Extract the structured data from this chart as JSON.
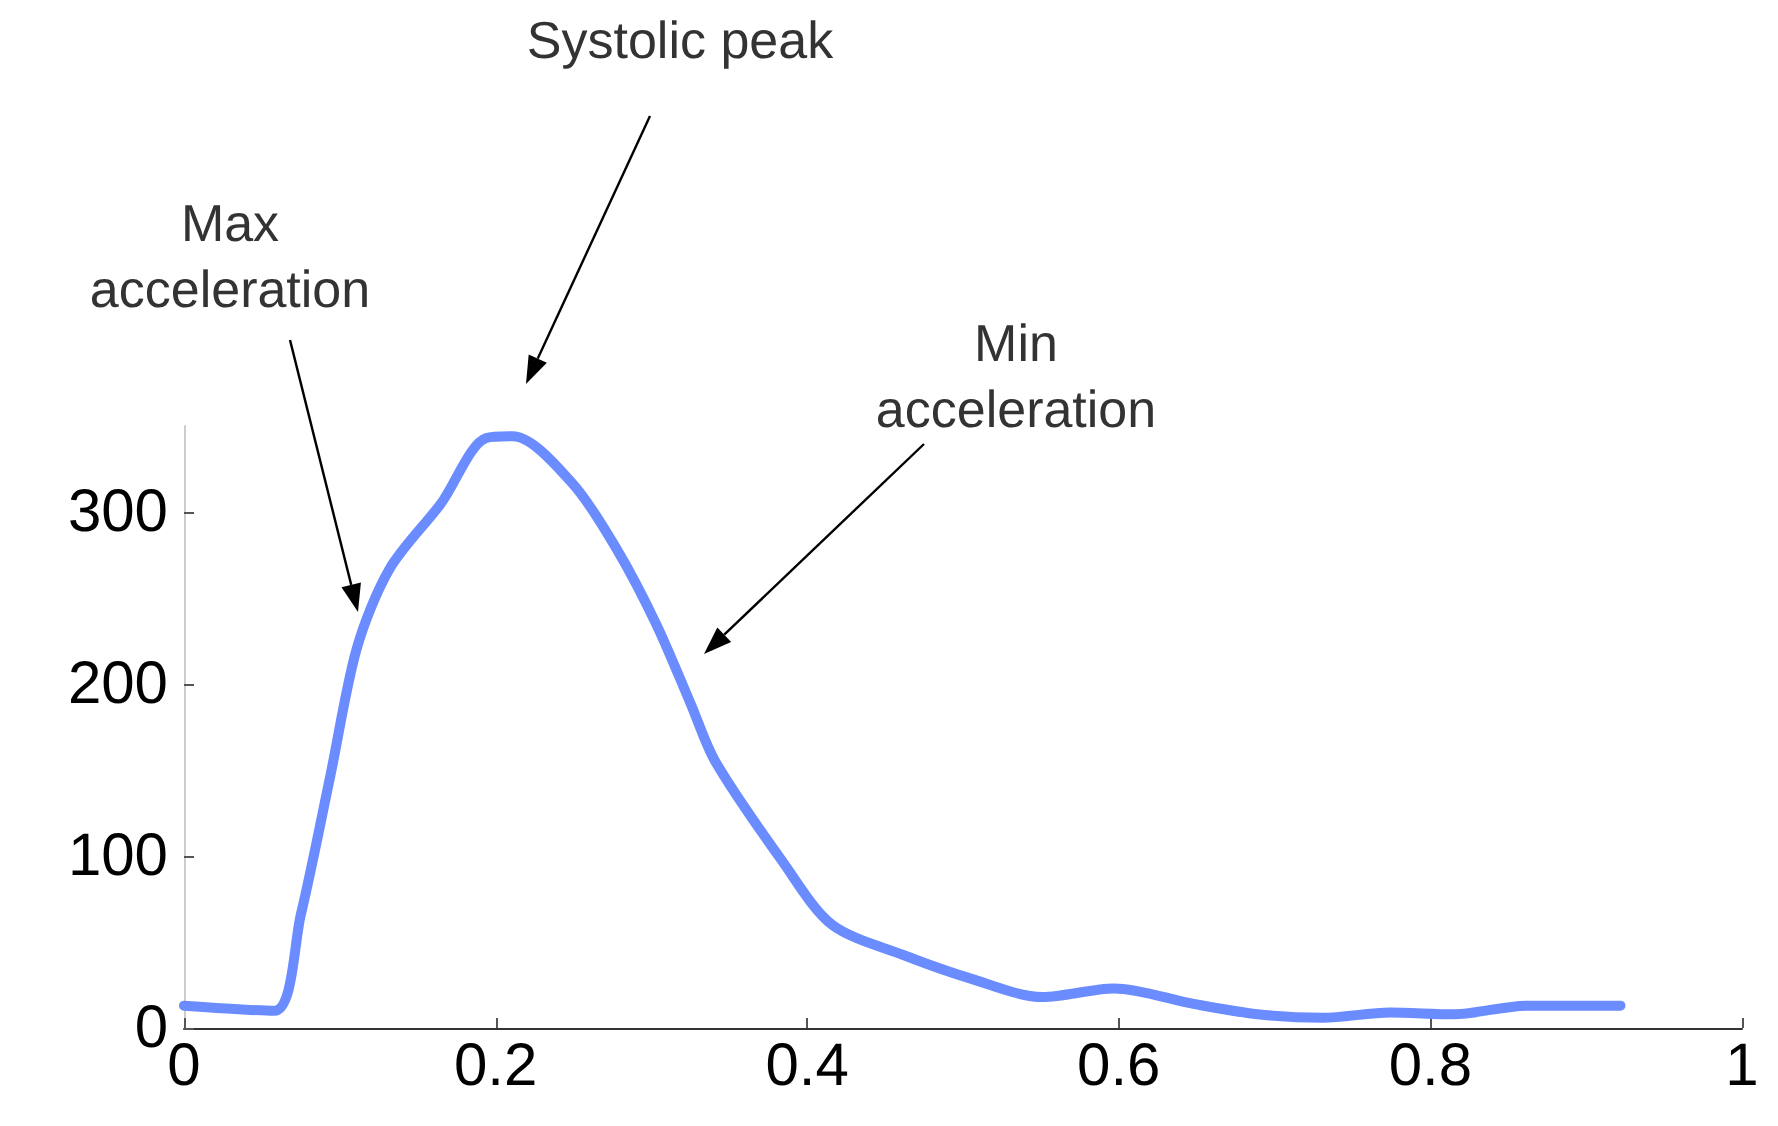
{
  "chart_data": {
    "type": "line",
    "x": [
      0,
      0.058,
      0.075,
      0.094,
      0.111,
      0.132,
      0.165,
      0.194,
      0.211,
      0.249,
      0.278,
      0.303,
      0.325,
      0.341,
      0.384,
      0.416,
      0.463,
      0.504,
      0.551,
      0.597,
      0.648,
      0.689,
      0.731,
      0.774,
      0.815,
      0.862,
      0.922
    ],
    "series": [
      {
        "color": "#6a8cff",
        "values": [
          13,
          10,
          66,
          147,
          221,
          267,
          305,
          343,
          344,
          317,
          278,
          235,
          189,
          155,
          97,
          60,
          42,
          29,
          18,
          23,
          14,
          8,
          6,
          9,
          8,
          13,
          13
        ]
      }
    ],
    "xlim": [
      0,
      1
    ],
    "xticks": [
      0,
      0.2,
      0.4,
      0.6,
      0.8,
      1
    ],
    "ylim": [
      0,
      350
    ],
    "yticks": [
      0,
      100,
      200,
      300
    ],
    "grid": false,
    "marker": "none",
    "line_style": "solid",
    "annotations": [
      "Max\nacceleration",
      "Systolic peak",
      "Min\nacceleration"
    ]
  }
}
